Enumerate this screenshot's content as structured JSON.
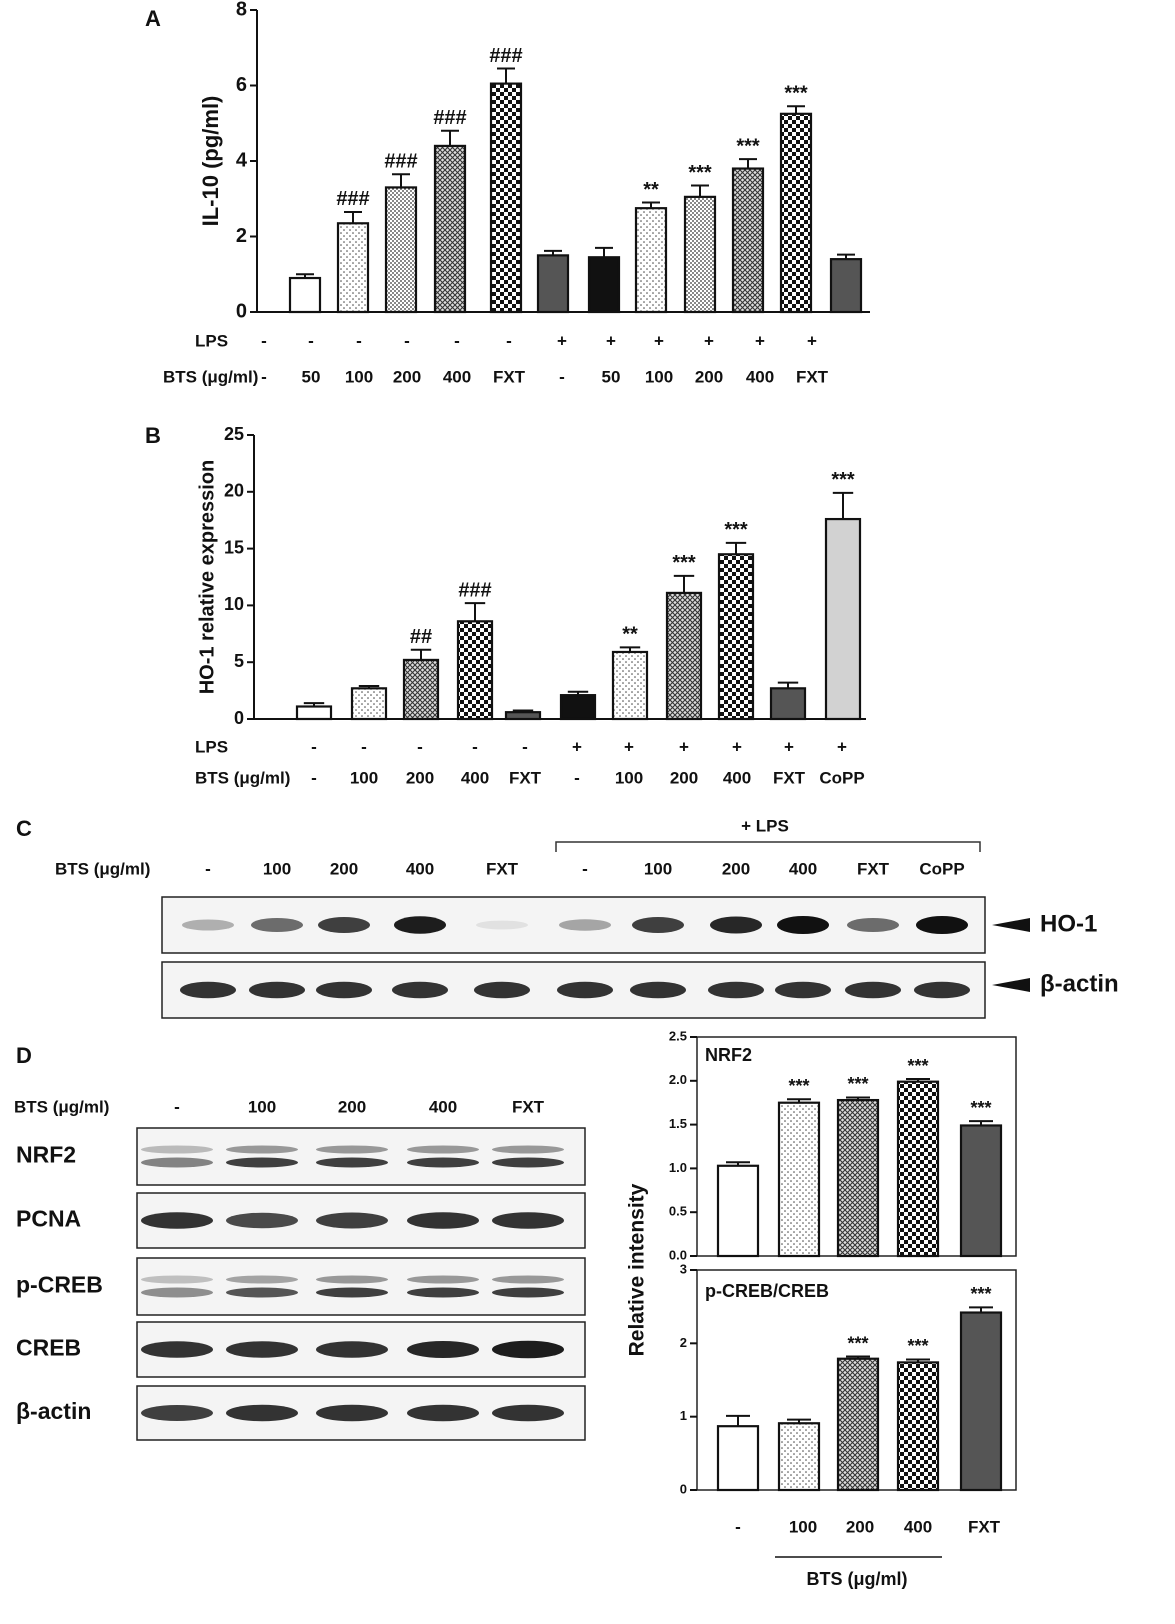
{
  "chart_data": [
    {
      "type": "bar",
      "panel": "A",
      "ylabel": "IL-10 (pg/ml)",
      "ylim": [
        0,
        8
      ],
      "yticks": [
        0,
        2,
        4,
        6,
        8
      ],
      "row_labels": [
        "LPS",
        "BTS (μg/ml)"
      ],
      "lps": [
        "-",
        "-",
        "-",
        "-",
        "-",
        "-",
        "+",
        "+",
        "+",
        "+",
        "+",
        "+"
      ],
      "categories": [
        "-",
        "50",
        "100",
        "200",
        "400",
        "FXT",
        "-",
        "50",
        "100",
        "200",
        "400",
        "FXT"
      ],
      "values": [
        0.9,
        2.35,
        3.3,
        4.4,
        6.05,
        1.5,
        1.45,
        2.75,
        3.05,
        3.8,
        5.25,
        1.4
      ],
      "errors": [
        0.1,
        0.3,
        0.35,
        0.4,
        0.4,
        0.12,
        0.25,
        0.15,
        0.3,
        0.25,
        0.2,
        0.12
      ],
      "annotations": [
        null,
        "###",
        "###",
        "###",
        "###",
        null,
        null,
        "**",
        "***",
        "***",
        "***",
        null
      ],
      "fills": [
        "white",
        "dots",
        "dense",
        "hatch",
        "checker",
        "dark",
        "black",
        "dots",
        "dense",
        "hatch",
        "checker",
        "dark"
      ]
    },
    {
      "type": "bar",
      "panel": "B",
      "ylabel": "HO-1 relative expression",
      "ylim": [
        0,
        25
      ],
      "yticks": [
        0,
        5,
        10,
        15,
        20,
        25
      ],
      "row_labels": [
        "LPS",
        "BTS (μg/ml)"
      ],
      "lps": [
        "-",
        "-",
        "-",
        "-",
        "-",
        "+",
        "+",
        "+",
        "+",
        "+",
        "+"
      ],
      "categories": [
        "-",
        "100",
        "200",
        "400",
        "FXT",
        "-",
        "100",
        "200",
        "400",
        "FXT",
        "CoPP"
      ],
      "values": [
        1.1,
        2.7,
        5.2,
        8.6,
        0.6,
        2.1,
        5.9,
        11.1,
        14.5,
        2.7,
        17.6
      ],
      "errors": [
        0.3,
        0.2,
        0.9,
        1.6,
        0.15,
        0.3,
        0.4,
        1.5,
        1.0,
        0.5,
        2.3
      ],
      "annotations": [
        null,
        null,
        "##",
        "###",
        null,
        null,
        "**",
        "***",
        "***",
        null,
        "***"
      ],
      "fills": [
        "white",
        "dots",
        "hatch",
        "checker",
        "dark",
        "black",
        "dots",
        "hatch",
        "checker",
        "dark",
        "light"
      ]
    },
    {
      "type": "bar",
      "title": "NRF2",
      "ylabel": "Relative intensity",
      "ylim": [
        0,
        2.5
      ],
      "yticks": [
        {
          "value": 0,
          "label": "0.0"
        },
        0.5,
        {
          "value": 1,
          "label": "1.0"
        },
        1.5,
        {
          "value": 2,
          "label": "2.0"
        },
        2.5
      ],
      "values": [
        1.03,
        1.75,
        1.78,
        1.99,
        1.49
      ],
      "errors": [
        0.04,
        0.04,
        0.03,
        0.03,
        0.05
      ],
      "annotations": [
        null,
        "***",
        "***",
        "***",
        "***"
      ],
      "fills": [
        "white",
        "dots",
        "hatch",
        "checker",
        "dark"
      ]
    },
    {
      "type": "bar",
      "title": "p-CREB/CREB",
      "xlabel": "BTS (μg/ml)",
      "ylim": [
        0,
        3
      ],
      "yticks": [
        0,
        1,
        2,
        3
      ],
      "categories": [
        "-",
        "100",
        "200",
        "400",
        "FXT"
      ],
      "values": [
        0.87,
        0.91,
        1.79,
        1.74,
        2.42
      ],
      "errors": [
        0.14,
        0.05,
        0.03,
        0.04,
        0.07
      ],
      "annotations": [
        null,
        null,
        "***",
        "***",
        "***"
      ],
      "fills": [
        "white",
        "dots",
        "hatch",
        "checker",
        "dark"
      ]
    }
  ],
  "blot_c": {
    "panel": "C",
    "row_label": "BTS (μg/ml)",
    "group_label": "+ LPS",
    "lanes": [
      "-",
      "100",
      "200",
      "400",
      "FXT",
      "-",
      "100",
      "200",
      "400",
      "FXT",
      "CoPP"
    ],
    "bands": [
      "HO-1",
      "β-actin"
    ]
  },
  "blot_d": {
    "panel": "D",
    "row_label": "BTS (μg/ml)",
    "lanes": [
      "-",
      "100",
      "200",
      "400",
      "FXT"
    ],
    "bands": [
      "NRF2",
      "PCNA",
      "p-CREB",
      "CREB",
      "β-actin"
    ]
  }
}
